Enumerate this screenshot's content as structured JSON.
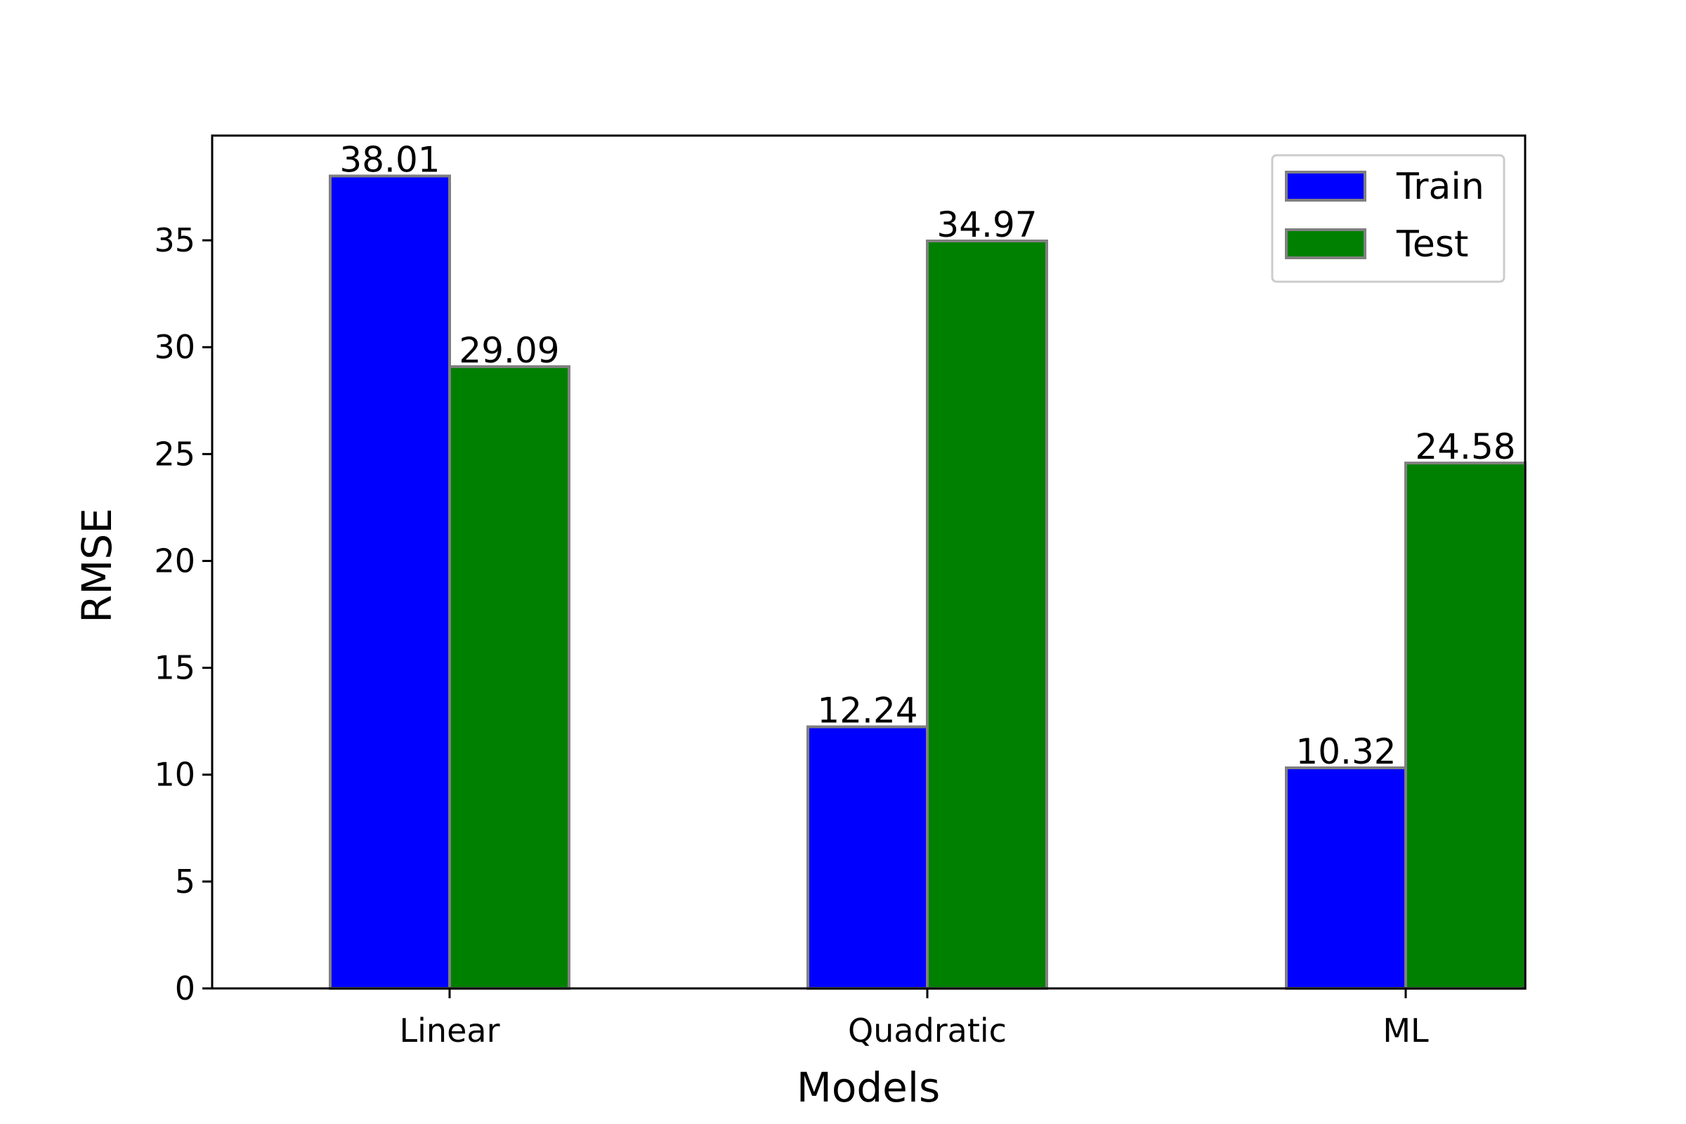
{
  "chart_data": {
    "type": "bar",
    "title": "",
    "xlabel": "Models",
    "ylabel": "RMSE",
    "categories": [
      "Linear",
      "Quadratic",
      "ML"
    ],
    "series": [
      {
        "name": "Train",
        "color": "#0000ff",
        "values": [
          38.01,
          12.24,
          10.32
        ],
        "labels": [
          "38.01",
          "12.24",
          "10.32"
        ]
      },
      {
        "name": "Test",
        "color": "#008000",
        "values": [
          29.09,
          34.97,
          24.58
        ],
        "labels": [
          "29.09",
          "34.97",
          "24.58"
        ]
      }
    ],
    "ylim": [
      0,
      40
    ],
    "yticks": [
      0,
      5,
      10,
      15,
      20,
      25,
      30,
      35
    ],
    "ytick_labels": [
      "0",
      "5",
      "10",
      "15",
      "20",
      "25",
      "30",
      "35"
    ],
    "bar_edge_color": "#808080",
    "grid": false,
    "legend_position": "top-right"
  }
}
